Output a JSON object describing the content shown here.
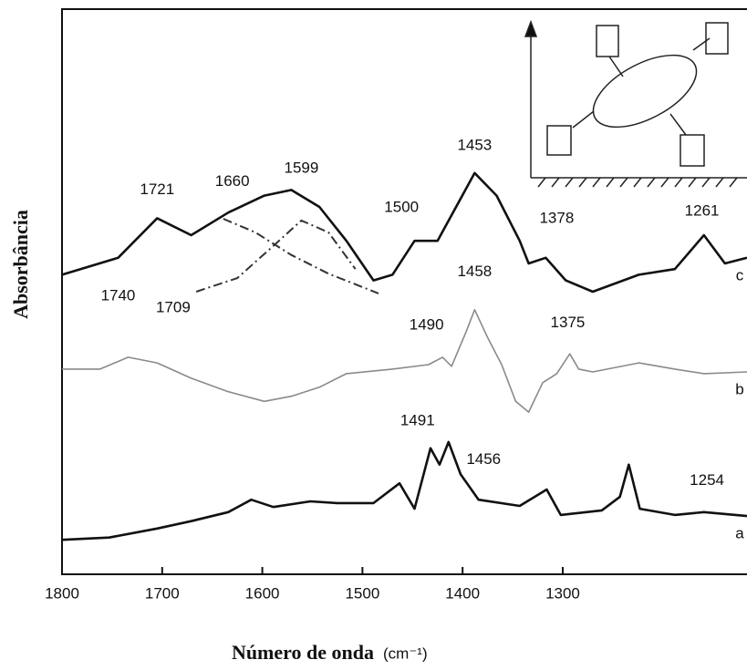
{
  "chart_data": {
    "type": "line",
    "x_label": "Número de onda",
    "x_unit": "(cm⁻¹)",
    "y_label": "Absorbância",
    "xlim": [
      1800,
      1116
    ],
    "xticks": [
      1800,
      1700,
      1600,
      1500,
      1400,
      1300
    ],
    "ylim": [
      0,
      100
    ],
    "series": [
      {
        "name": "c",
        "color": "#111111",
        "x": [
          1800,
          1744,
          1705,
          1671,
          1634,
          1598,
          1571,
          1543,
          1516,
          1489,
          1470,
          1448,
          1425,
          1388,
          1366,
          1343,
          1334,
          1317,
          1297,
          1270,
          1224,
          1188,
          1159,
          1138,
          1116
        ],
        "values": [
          53,
          56,
          63,
          60,
          64,
          67,
          68,
          65,
          59,
          52,
          53,
          59,
          59,
          71,
          67,
          59,
          55,
          56,
          52,
          50,
          53,
          54,
          60,
          55,
          56
        ]
      },
      {
        "name": "b",
        "color": "#8a8a8a",
        "x": [
          1800,
          1762,
          1734,
          1705,
          1671,
          1634,
          1598,
          1571,
          1543,
          1516,
          1470,
          1434,
          1420,
          1411,
          1397,
          1388,
          1375,
          1361,
          1347,
          1334,
          1320,
          1306,
          1293,
          1284,
          1270,
          1224,
          1188,
          1159,
          1116
        ],
        "values": [
          36.3,
          36.3,
          38.4,
          37.4,
          34.7,
          32.3,
          30.6,
          31.5,
          33.1,
          35.5,
          36.3,
          37.1,
          38.4,
          36.8,
          42.7,
          46.8,
          41.9,
          37.1,
          30.6,
          28.7,
          33.9,
          35.5,
          39,
          36.3,
          35.8,
          37.4,
          36.3,
          35.5,
          35.8
        ]
      },
      {
        "name": "a",
        "color": "#111111",
        "x": [
          1800,
          1753,
          1705,
          1671,
          1634,
          1611,
          1589,
          1552,
          1525,
          1489,
          1463,
          1448,
          1432,
          1423,
          1414,
          1402,
          1384,
          1343,
          1316,
          1302,
          1261,
          1243,
          1234,
          1223,
          1188,
          1159,
          1116
        ],
        "values": [
          6.1,
          6.5,
          8.1,
          9.4,
          11,
          13.2,
          11.9,
          12.9,
          12.6,
          12.6,
          16.1,
          11.6,
          22.3,
          19.4,
          23.4,
          17.7,
          13.2,
          12.1,
          15,
          10.5,
          11.3,
          13.7,
          19.4,
          11.6,
          10.5,
          11,
          10.3
        ]
      }
    ],
    "fit_curves": [
      {
        "color": "#333333",
        "x": [
          1639,
          1607,
          1571,
          1534,
          1484
        ],
        "values": [
          62.9,
          60.5,
          56.5,
          53.2,
          49.7
        ]
      },
      {
        "color": "#333333",
        "x": [
          1666,
          1625,
          1589,
          1561,
          1534,
          1507
        ],
        "values": [
          50,
          52.4,
          58.1,
          62.6,
          60.5,
          54
        ]
      }
    ],
    "annotations": [
      {
        "text": "1721",
        "x": 1705,
        "y": 68
      },
      {
        "text": "1660",
        "x": 1630,
        "y": 69.4
      },
      {
        "text": "1599",
        "x": 1561,
        "y": 71.8
      },
      {
        "text": "1453",
        "x": 1388,
        "y": 75.8
      },
      {
        "text": "1500",
        "x": 1461,
        "y": 64.8
      },
      {
        "text": "1378",
        "x": 1306,
        "y": 62.9
      },
      {
        "text": "1261",
        "x": 1161,
        "y": 64.2
      },
      {
        "text": "1458",
        "x": 1388,
        "y": 53.5
      },
      {
        "text": "1740",
        "x": 1744,
        "y": 49.2
      },
      {
        "text": "1709",
        "x": 1689,
        "y": 47.1
      },
      {
        "text": "1490",
        "x": 1436,
        "y": 44
      },
      {
        "text": "1375",
        "x": 1295,
        "y": 44.4
      },
      {
        "text": "1491",
        "x": 1445,
        "y": 27.1
      },
      {
        "text": "1456",
        "x": 1379,
        "y": 20.2
      },
      {
        "text": "1254",
        "x": 1156,
        "y": 16.5
      }
    ]
  }
}
